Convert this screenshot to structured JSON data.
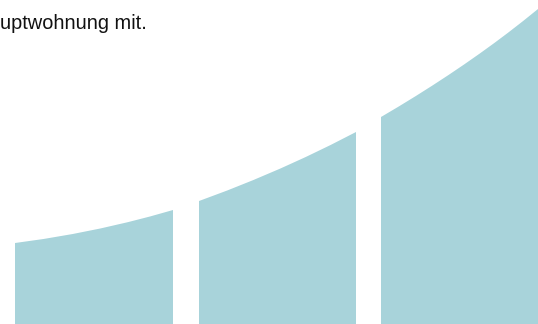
{
  "content": {
    "partial_text": "uptwohnung mit."
  },
  "colors": {
    "text": "#111111",
    "bars": "#a8d3da",
    "background": "#ffffff"
  },
  "icons": {
    "graphic": "growth-bars-icon"
  }
}
